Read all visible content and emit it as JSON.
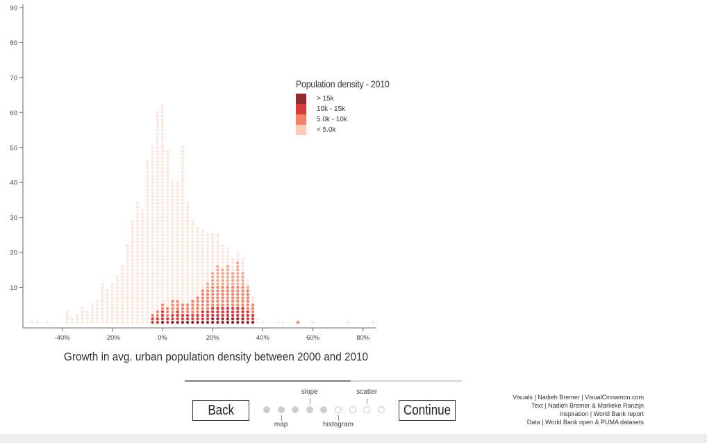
{
  "chart_data": {
    "type": "dot-histogram",
    "xlabel": "Growth in avg. urban population density between 2000 and 2010",
    "ylabel": "",
    "xlim": [
      -54,
      84
    ],
    "ylim": [
      0,
      90
    ],
    "x_ticks": [
      {
        "value": -40,
        "label": "-40%"
      },
      {
        "value": -20,
        "label": "-20%"
      },
      {
        "value": 0,
        "label": "0%"
      },
      {
        "value": 20,
        "label": "20%"
      },
      {
        "value": 40,
        "label": "40%"
      },
      {
        "value": 60,
        "label": "60%"
      },
      {
        "value": 80,
        "label": "80%"
      }
    ],
    "y_ticks": [
      {
        "value": 10,
        "label": "10"
      },
      {
        "value": 20,
        "label": "20"
      },
      {
        "value": 30,
        "label": "30"
      },
      {
        "value": 40,
        "label": "40"
      },
      {
        "value": 50,
        "label": "50"
      },
      {
        "value": 60,
        "label": "60"
      },
      {
        "value": 70,
        "label": "70"
      },
      {
        "value": 80,
        "label": "80"
      },
      {
        "value": 90,
        "label": "90"
      }
    ],
    "bin_width_percent": 2,
    "bins": [
      {
        "x": -52,
        "light": 1,
        "mid": 0,
        "high": 0,
        "top": 0
      },
      {
        "x": -50,
        "light": 1,
        "mid": 0,
        "high": 0,
        "top": 0
      },
      {
        "x": -46,
        "light": 1,
        "mid": 0,
        "high": 0,
        "top": 0
      },
      {
        "x": -38,
        "light": 4,
        "mid": 0,
        "high": 0,
        "top": 0
      },
      {
        "x": -36,
        "light": 2,
        "mid": 0,
        "high": 0,
        "top": 0
      },
      {
        "x": -34,
        "light": 3,
        "mid": 0,
        "high": 0,
        "top": 0
      },
      {
        "x": -32,
        "light": 5,
        "mid": 0,
        "high": 0,
        "top": 0
      },
      {
        "x": -30,
        "light": 4,
        "mid": 0,
        "high": 0,
        "top": 0
      },
      {
        "x": -28,
        "light": 6,
        "mid": 0,
        "high": 0,
        "top": 0
      },
      {
        "x": -26,
        "light": 7,
        "mid": 0,
        "high": 0,
        "top": 0
      },
      {
        "x": -24,
        "light": 12,
        "mid": 0,
        "high": 0,
        "top": 0
      },
      {
        "x": -22,
        "light": 10,
        "mid": 0,
        "high": 0,
        "top": 0
      },
      {
        "x": -20,
        "light": 12,
        "mid": 0,
        "high": 0,
        "top": 0
      },
      {
        "x": -18,
        "light": 14,
        "mid": 0,
        "high": 0,
        "top": 0
      },
      {
        "x": -16,
        "light": 17,
        "mid": 0,
        "high": 0,
        "top": 0
      },
      {
        "x": -14,
        "light": 23,
        "mid": 0,
        "high": 0,
        "top": 0
      },
      {
        "x": -12,
        "light": 30,
        "mid": 0,
        "high": 0,
        "top": 0
      },
      {
        "x": -10,
        "light": 35,
        "mid": 0,
        "high": 0,
        "top": 0
      },
      {
        "x": -8,
        "light": 33,
        "mid": 0,
        "high": 0,
        "top": 0
      },
      {
        "x": -6,
        "light": 47,
        "mid": 0,
        "high": 0,
        "top": 0
      },
      {
        "x": -4,
        "light": 48,
        "mid": 1,
        "high": 2,
        "top": 0
      },
      {
        "x": -2,
        "light": 57,
        "mid": 2,
        "high": 2,
        "top": 0
      },
      {
        "x": 0,
        "light": 57,
        "mid": 2,
        "high": 3,
        "top": 1
      },
      {
        "x": 2,
        "light": 45,
        "mid": 3,
        "high": 2,
        "top": 0
      },
      {
        "x": 4,
        "light": 34,
        "mid": 4,
        "high": 2,
        "top": 1
      },
      {
        "x": 6,
        "light": 34,
        "mid": 3,
        "high": 3,
        "top": 1
      },
      {
        "x": 8,
        "light": 45,
        "mid": 3,
        "high": 2,
        "top": 1
      },
      {
        "x": 10,
        "light": 29,
        "mid": 3,
        "high": 2,
        "top": 1
      },
      {
        "x": 12,
        "light": 23,
        "mid": 4,
        "high": 2,
        "top": 1
      },
      {
        "x": 14,
        "light": 20,
        "mid": 5,
        "high": 2,
        "top": 1
      },
      {
        "x": 16,
        "light": 17,
        "mid": 6,
        "high": 3,
        "top": 1
      },
      {
        "x": 18,
        "light": 14,
        "mid": 8,
        "high": 3,
        "top": 1
      },
      {
        "x": 20,
        "light": 11,
        "mid": 10,
        "high": 3,
        "top": 2
      },
      {
        "x": 22,
        "light": 9,
        "mid": 12,
        "high": 3,
        "top": 2
      },
      {
        "x": 24,
        "light": 7,
        "mid": 11,
        "high": 3,
        "top": 2
      },
      {
        "x": 26,
        "light": 5,
        "mid": 12,
        "high": 3,
        "top": 2
      },
      {
        "x": 28,
        "light": 4,
        "mid": 10,
        "high": 3,
        "top": 2
      },
      {
        "x": 30,
        "light": 3,
        "mid": 13,
        "high": 3,
        "top": 2
      },
      {
        "x": 32,
        "light": 4,
        "mid": 10,
        "high": 3,
        "top": 2
      },
      {
        "x": 34,
        "light": 2,
        "mid": 7,
        "high": 3,
        "top": 1
      },
      {
        "x": 36,
        "light": 2,
        "mid": 3,
        "high": 2,
        "top": 1
      },
      {
        "x": 38,
        "light": 2,
        "mid": 0,
        "high": 0,
        "top": 0
      },
      {
        "x": 40,
        "light": 1,
        "mid": 0,
        "high": 0,
        "top": 0
      },
      {
        "x": 46,
        "light": 1,
        "mid": 0,
        "high": 0,
        "top": 0
      },
      {
        "x": 48,
        "light": 1,
        "mid": 0,
        "high": 0,
        "top": 0
      },
      {
        "x": 54,
        "light": 0,
        "mid": 1,
        "high": 0,
        "top": 0
      },
      {
        "x": 60,
        "light": 1,
        "mid": 0,
        "high": 0,
        "top": 0
      },
      {
        "x": 74,
        "light": 1,
        "mid": 0,
        "high": 0,
        "top": 0
      },
      {
        "x": 84,
        "light": 1,
        "mid": 0,
        "high": 0,
        "top": 0
      }
    ],
    "legend": {
      "title": "Population density - 2010",
      "position": "top-center",
      "items": [
        {
          "label": "> 15k",
          "color": "#8f2a2e"
        },
        {
          "label": "10k - 15k",
          "color": "#d63b3b"
        },
        {
          "label": "5.0k - 10k",
          "color": "#f4836a"
        },
        {
          "label": "< 5.0k",
          "color": "#fbcab8"
        }
      ]
    },
    "fade_color": "#fbe7e0"
  },
  "nav": {
    "back_label": "Back",
    "continue_label": "Continue",
    "progress_fraction": 0.6,
    "total_steps": 9,
    "current_step": 5,
    "step_labels": [
      {
        "step": 2,
        "label": "map",
        "position": "below"
      },
      {
        "step": 4,
        "label": "slope",
        "position": "above"
      },
      {
        "step": 6,
        "label": "histogram",
        "position": "below"
      },
      {
        "step": 8,
        "label": "scatter",
        "position": "above"
      }
    ]
  },
  "credits": [
    "Visuals | Nadieh Bremer | VisualCinnamon.com",
    "Text | Nadieh Bremer & Marlieke Ranzijn",
    "Inspiration | World Bank report",
    "Data | World Bank open & PUMA datasets"
  ]
}
